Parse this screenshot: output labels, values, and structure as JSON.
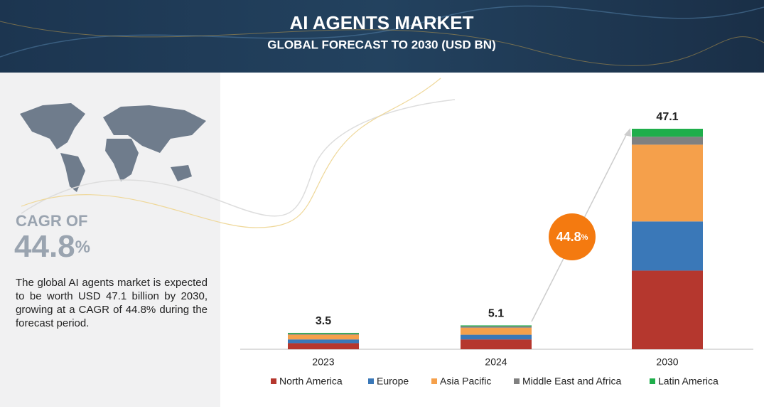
{
  "header": {
    "title": "AI AGENTS MARKET",
    "subtitle": "GLOBAL FORECAST TO 2030 (USD BN)"
  },
  "sidebar": {
    "cagr_label": "CAGR OF",
    "cagr_value": 44.8,
    "cagr_unit": "%",
    "description": "The global AI agents market is expected to be worth USD 47.1 billion by 2030, growing at a CAGR of 44.8% during the forecast period."
  },
  "chart_data": {
    "type": "bar",
    "stacked": true,
    "categories": [
      "2023",
      "2024",
      "2030"
    ],
    "totals": [
      3.5,
      5.1,
      47.1
    ],
    "series": [
      {
        "name": "North America",
        "color": "#b5372e",
        "values": [
          1.3,
          2.1,
          16.8
        ]
      },
      {
        "name": "Europe",
        "color": "#3a78b8",
        "values": [
          0.8,
          1.0,
          10.5
        ]
      },
      {
        "name": "Asia Pacific",
        "color": "#f5a04b",
        "values": [
          1.0,
          1.5,
          16.4
        ]
      },
      {
        "name": "Middle East and Africa",
        "color": "#808080",
        "values": [
          0.2,
          0.3,
          1.7
        ]
      },
      {
        "name": "Latin America",
        "color": "#1fae4b",
        "values": [
          0.2,
          0.2,
          1.7
        ]
      }
    ],
    "cagr_badge": {
      "value": 44.8,
      "unit": "%"
    },
    "legend": "bottom"
  }
}
